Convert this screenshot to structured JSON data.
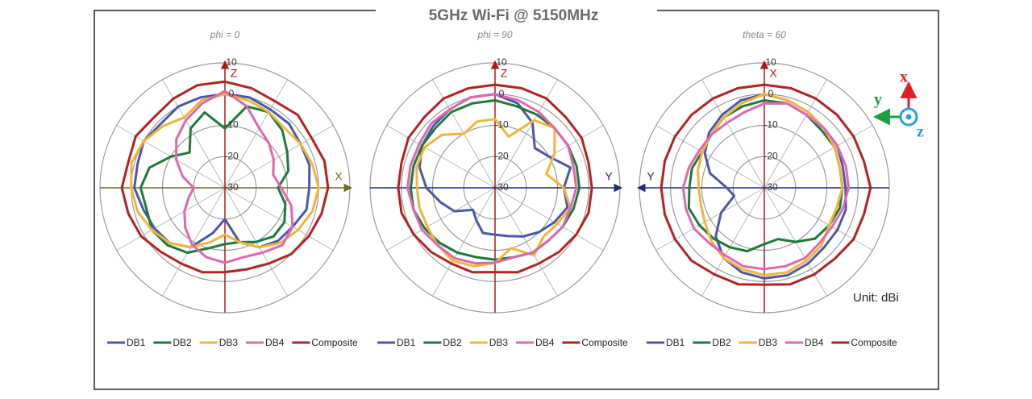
{
  "title": "5GHz Wi-Fi @ 5150MHz",
  "annotation": "Unit: dBi",
  "axes_icon": {
    "x": "x",
    "y": "y",
    "z": "z"
  },
  "chart_data": [
    {
      "type": "polar",
      "subtitle": "phi = 0",
      "vertical_axis": {
        "label": "Z",
        "direction": "up",
        "color": "#b01818"
      },
      "horizontal_axis": {
        "label": "X",
        "direction": "right",
        "color": "#6b6b2a"
      },
      "rlim": [
        -30,
        10
      ],
      "rticks": [
        10,
        0,
        -10,
        -20,
        -30
      ],
      "grid": true,
      "x": [
        0,
        15,
        30,
        45,
        60,
        75,
        90,
        105,
        120,
        135,
        150,
        165,
        180,
        195,
        210,
        225,
        240,
        255,
        270,
        285,
        300,
        315,
        330,
        345
      ],
      "series": [
        {
          "name": "DB1",
          "color": "#4a58a8",
          "values": [
            0,
            0,
            -1,
            -1,
            -2,
            -2,
            -3,
            -3,
            -5,
            -6,
            -8,
            -12,
            -20,
            -15,
            -8,
            -5,
            -4,
            -3,
            -1,
            -1,
            0,
            -1,
            0,
            0
          ]
        },
        {
          "name": "DB2",
          "color": "#1e7a3a",
          "values": [
            -11,
            -3,
            -2,
            -4,
            -7,
            -9,
            -13,
            -10,
            -8,
            -8,
            -10,
            -12,
            -12,
            -10,
            -6,
            -4,
            -3,
            -4,
            -3,
            -5,
            -10,
            -14,
            -8,
            -5
          ]
        },
        {
          "name": "DB3",
          "color": "#f0b43a",
          "values": [
            0,
            -1,
            -2,
            -3,
            -2,
            -1,
            0,
            -1,
            -3,
            -5,
            -8,
            -12,
            -15,
            -12,
            -8,
            -5,
            -3,
            -1,
            0,
            1,
            0,
            -2,
            -4,
            -1
          ]
        },
        {
          "name": "DB4",
          "color": "#e066b0",
          "values": [
            1,
            -3,
            -8,
            -10,
            -12,
            -14,
            -12,
            -8,
            -5,
            -4,
            -6,
            -7,
            -6,
            -7,
            -9,
            -12,
            -15,
            -18,
            -20,
            -16,
            -12,
            -8,
            -5,
            -2
          ]
        },
        {
          "name": "Composite",
          "color": "#b22222",
          "values": [
            4,
            3,
            2,
            3,
            2,
            3,
            3,
            2,
            1,
            0,
            -2,
            -3,
            -3,
            -2,
            -2,
            -1,
            1,
            2,
            3,
            2,
            3,
            2,
            3,
            4
          ]
        }
      ]
    },
    {
      "type": "polar",
      "subtitle": "phi = 90",
      "vertical_axis": {
        "label": "Z",
        "direction": "up",
        "color": "#b01818"
      },
      "horizontal_axis": {
        "label": "Y",
        "direction": "right",
        "color": "#1f2a7a"
      },
      "rlim": [
        -30,
        10
      ],
      "rticks": [
        10,
        0,
        -10,
        -20,
        -30
      ],
      "grid": true,
      "x": [
        0,
        15,
        30,
        45,
        60,
        75,
        90,
        105,
        120,
        135,
        150,
        165,
        180,
        195,
        210,
        225,
        240,
        255,
        270,
        285,
        300,
        315,
        330,
        345
      ],
      "series": [
        {
          "name": "DB1",
          "color": "#4a58a8",
          "values": [
            0,
            -2,
            -6,
            -12,
            -10,
            -5,
            -8,
            -6,
            -8,
            -10,
            -12,
            -14,
            -15,
            -15,
            -18,
            -20,
            -15,
            -12,
            -8,
            -5,
            -3,
            -2,
            -1,
            0
          ]
        },
        {
          "name": "DB2",
          "color": "#1e7a3a",
          "values": [
            -2,
            -3,
            -3,
            -3,
            -3,
            -3,
            -3,
            -4,
            -5,
            -6,
            -6,
            -7,
            -7,
            -7,
            -6,
            -5,
            -4,
            -3,
            -3,
            -3,
            -3,
            -3,
            -2,
            -2
          ]
        },
        {
          "name": "DB3",
          "color": "#f0b43a",
          "values": [
            -8,
            -13,
            -5,
            -3,
            -8,
            -13,
            -8,
            -5,
            -7,
            -8,
            -5,
            -10,
            -6,
            -4,
            -3,
            -4,
            -5,
            -5,
            -5,
            -4,
            -4,
            -6,
            -10,
            -8
          ]
        },
        {
          "name": "DB4",
          "color": "#e066b0",
          "values": [
            0,
            -1,
            -2,
            -3,
            -3,
            -4,
            -4,
            -5,
            -5,
            -6,
            -6,
            -7,
            -6,
            -5,
            -4,
            -4,
            -3,
            -3,
            -2,
            -2,
            -2,
            -1,
            -1,
            0
          ]
        },
        {
          "name": "Composite",
          "color": "#b22222",
          "values": [
            3,
            3,
            3,
            2,
            2,
            1,
            1,
            1,
            0,
            -1,
            -2,
            -2,
            -3,
            -2,
            -2,
            -1,
            0,
            1,
            1,
            1,
            2,
            2,
            3,
            3
          ]
        }
      ]
    },
    {
      "type": "polar",
      "subtitle": "theta = 60",
      "vertical_axis": {
        "label": "X",
        "direction": "up",
        "color": "#b01818"
      },
      "horizontal_axis": {
        "label": "Y",
        "direction": "left",
        "color": "#1f2a7a"
      },
      "rlim": [
        -30,
        10
      ],
      "rticks": [
        10,
        0,
        -10,
        -20,
        -30
      ],
      "grid": true,
      "x": [
        0,
        15,
        30,
        45,
        60,
        75,
        90,
        105,
        120,
        135,
        150,
        165,
        180,
        195,
        210,
        225,
        240,
        255,
        270,
        285,
        300,
        315,
        330,
        345
      ],
      "series": [
        {
          "name": "DB1",
          "color": "#4a58a8",
          "values": [
            0,
            -1,
            -2,
            -3,
            -3,
            -4,
            -4,
            -3,
            -3,
            -3,
            -2,
            -1,
            -1,
            -2,
            -4,
            -8,
            -14,
            -20,
            -18,
            -12,
            -8,
            -5,
            -3,
            -1
          ]
        },
        {
          "name": "DB2",
          "color": "#1e7a3a",
          "values": [
            -2,
            -2,
            -3,
            -4,
            -4,
            -5,
            -5,
            -5,
            -6,
            -7,
            -10,
            -13,
            -12,
            -9,
            -8,
            -7,
            -6,
            -5,
            -6,
            -6,
            -7,
            -6,
            -4,
            -3
          ]
        },
        {
          "name": "DB3",
          "color": "#f0b43a",
          "values": [
            0,
            -1,
            -2,
            -3,
            -4,
            -5,
            -5,
            -6,
            -6,
            -4,
            -3,
            -2,
            -2,
            -3,
            -4,
            -6,
            -8,
            -9,
            -9,
            -8,
            -7,
            -6,
            -4,
            -2
          ]
        },
        {
          "name": "DB4",
          "color": "#e066b0",
          "values": [
            -3,
            -2,
            -3,
            -3,
            -3,
            -3,
            -3,
            -4,
            -5,
            -5,
            -4,
            -4,
            -4,
            -4,
            -5,
            -5,
            -4,
            -4,
            -4,
            -5,
            -6,
            -6,
            -6,
            -5
          ]
        },
        {
          "name": "Composite",
          "color": "#b22222",
          "values": [
            3,
            3,
            3,
            3,
            3,
            3,
            4,
            3,
            3,
            2,
            2,
            2,
            1,
            2,
            2,
            3,
            3,
            3,
            3,
            3,
            3,
            3,
            3,
            3
          ]
        }
      ]
    }
  ]
}
